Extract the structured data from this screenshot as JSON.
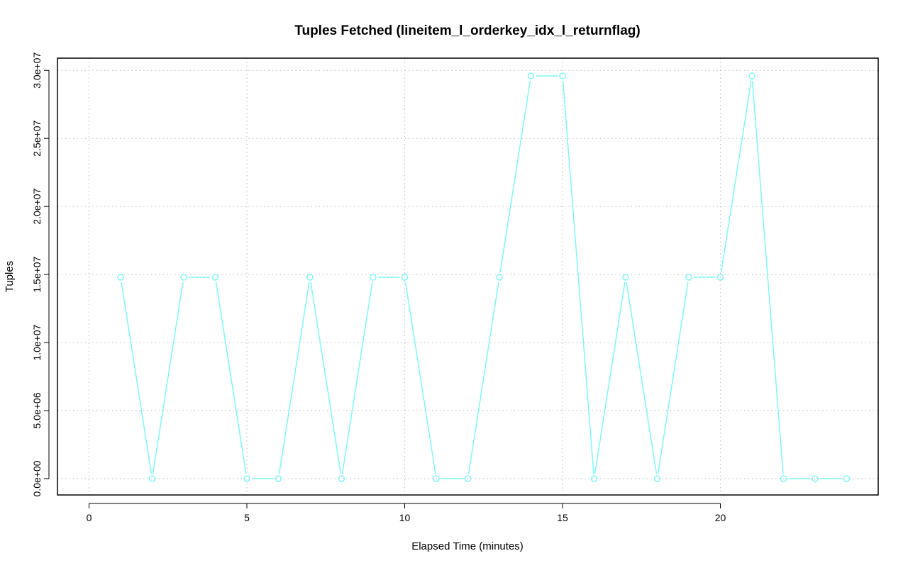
{
  "chart_data": {
    "type": "line",
    "title": "Tuples Fetched (lineitem_l_orderkey_idx_l_returnflag)",
    "xlabel": "Elapsed Time (minutes)",
    "ylabel": "Tuples",
    "xlim": [
      -1,
      25
    ],
    "ylim": [
      -1200000,
      30900000
    ],
    "x_ticks": [
      0,
      5,
      10,
      15,
      20
    ],
    "x_tick_labels": [
      "0",
      "5",
      "10",
      "15",
      "20"
    ],
    "y_ticks": [
      0,
      5000000,
      10000000,
      15000000,
      20000000,
      25000000,
      30000000
    ],
    "y_tick_labels": [
      "0.0e+00",
      "5.0e+06",
      "1.0e+07",
      "1.5e+07",
      "2.0e+07",
      "2.5e+07",
      "3.0e+07"
    ],
    "grid": true,
    "series": [
      {
        "color": "#7ff7f7",
        "marker": "open-circle",
        "x": [
          1,
          2,
          3,
          4,
          5,
          6,
          7,
          8,
          9,
          10,
          11,
          12,
          13,
          14,
          15,
          16,
          17,
          18,
          19,
          20,
          21,
          22,
          23,
          24
        ],
        "y": [
          14800000,
          0,
          14800000,
          14800000,
          0,
          0,
          14800000,
          0,
          14800000,
          14800000,
          0,
          0,
          14800000,
          29600000,
          29600000,
          0,
          14800000,
          0,
          14800000,
          14800000,
          29600000,
          0,
          0,
          0
        ]
      }
    ]
  }
}
